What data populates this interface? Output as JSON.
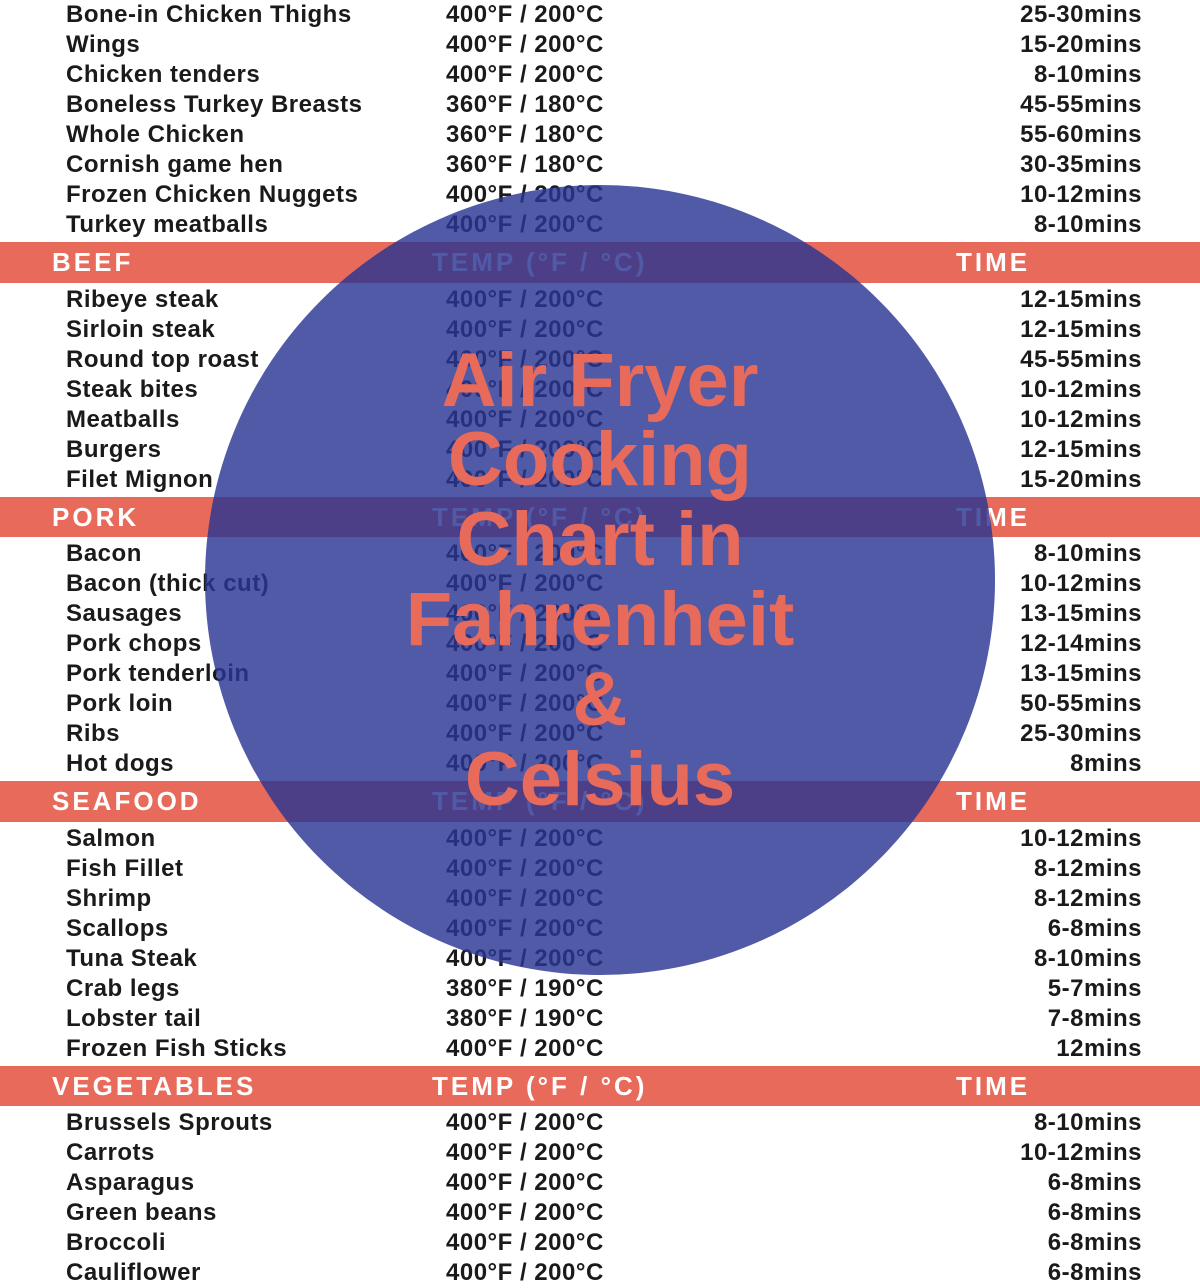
{
  "overlay": {
    "title": "Air Fryer\nCooking\nChart in\nFahrenheit\n&\nCelsius",
    "circle_color": "rgba(42,54,146,0.82)",
    "text_color": "#e86a5a"
  },
  "colors": {
    "header_bg": "#e86a5a",
    "header_text": "#ffffff",
    "row_text": "#1a1a1a",
    "page_bg": "#ffffff"
  },
  "column_headers": {
    "temp": "TEMP (°F / °C)",
    "time": "TIME"
  },
  "sections": [
    {
      "name": null,
      "rows": [
        {
          "food": "Bone-in Chicken Thighs",
          "temp": "400°F / 200°C",
          "time": "25-30mins"
        },
        {
          "food": "Wings",
          "temp": "400°F / 200°C",
          "time": "15-20mins"
        },
        {
          "food": "Chicken tenders",
          "temp": "400°F / 200°C",
          "time": "8-10mins"
        },
        {
          "food": "Boneless Turkey Breasts",
          "temp": "360°F / 180°C",
          "time": "45-55mins"
        },
        {
          "food": "Whole Chicken",
          "temp": "360°F / 180°C",
          "time": "55-60mins"
        },
        {
          "food": "Cornish game hen",
          "temp": "360°F / 180°C",
          "time": "30-35mins"
        },
        {
          "food": "Frozen Chicken Nuggets",
          "temp": "400°F / 200°C",
          "time": "10-12mins"
        },
        {
          "food": "Turkey meatballs",
          "temp": "400°F / 200°C",
          "time": "8-10mins"
        }
      ]
    },
    {
      "name": "BEEF",
      "rows": [
        {
          "food": "Ribeye steak",
          "temp": "400°F / 200°C",
          "time": "12-15mins"
        },
        {
          "food": "Sirloin steak",
          "temp": "400°F / 200°C",
          "time": "12-15mins"
        },
        {
          "food": "Round top roast",
          "temp": "400°F / 200°C",
          "time": "45-55mins"
        },
        {
          "food": "Steak bites",
          "temp": "400°F / 200°C",
          "time": "10-12mins"
        },
        {
          "food": "Meatballs",
          "temp": "400°F / 200°C",
          "time": "10-12mins"
        },
        {
          "food": "Burgers",
          "temp": "400°F / 200°C",
          "time": "12-15mins"
        },
        {
          "food": "Filet Mignon",
          "temp": "400°F / 200°C",
          "time": "15-20mins"
        }
      ]
    },
    {
      "name": "PORK",
      "rows": [
        {
          "food": "Bacon",
          "temp": "400°F / 200°C",
          "time": "8-10mins"
        },
        {
          "food": "Bacon (thick cut)",
          "temp": "400°F / 200°C",
          "time": "10-12mins"
        },
        {
          "food": "Sausages",
          "temp": "400°F / 200°C",
          "time": "13-15mins"
        },
        {
          "food": "Pork chops",
          "temp": "400°F / 200°C",
          "time": "12-14mins"
        },
        {
          "food": "Pork tenderloin",
          "temp": "400°F / 200°C",
          "time": "13-15mins"
        },
        {
          "food": "Pork loin",
          "temp": "400°F / 200°C",
          "time": "50-55mins"
        },
        {
          "food": "Ribs",
          "temp": "400°F / 200°C",
          "time": "25-30mins"
        },
        {
          "food": "Hot dogs",
          "temp": "400°F / 200°C",
          "time": "8mins"
        }
      ]
    },
    {
      "name": "SEAFOOD",
      "rows": [
        {
          "food": "Salmon",
          "temp": "400°F / 200°C",
          "time": "10-12mins"
        },
        {
          "food": "Fish Fillet",
          "temp": "400°F / 200°C",
          "time": "8-12mins"
        },
        {
          "food": "Shrimp",
          "temp": "400°F / 200°C",
          "time": "8-12mins"
        },
        {
          "food": "Scallops",
          "temp": "400°F / 200°C",
          "time": "6-8mins"
        },
        {
          "food": "Tuna Steak",
          "temp": "400°F / 200°C",
          "time": "8-10mins"
        },
        {
          "food": "Crab legs",
          "temp": "380°F / 190°C",
          "time": "5-7mins"
        },
        {
          "food": "Lobster tail",
          "temp": "380°F / 190°C",
          "time": "7-8mins"
        },
        {
          "food": "Frozen Fish Sticks",
          "temp": "400°F / 200°C",
          "time": "12mins"
        }
      ]
    },
    {
      "name": "VEGETABLES",
      "rows": [
        {
          "food": "Brussels Sprouts",
          "temp": "400°F / 200°C",
          "time": "8-10mins"
        },
        {
          "food": "Carrots",
          "temp": "400°F / 200°C",
          "time": "10-12mins"
        },
        {
          "food": "Asparagus",
          "temp": "400°F / 200°C",
          "time": "6-8mins"
        },
        {
          "food": "Green beans",
          "temp": "400°F / 200°C",
          "time": "6-8mins"
        },
        {
          "food": "Broccoli",
          "temp": "400°F / 200°C",
          "time": "6-8mins"
        },
        {
          "food": "Cauliflower",
          "temp": "400°F / 200°C",
          "time": "6-8mins"
        }
      ]
    }
  ]
}
